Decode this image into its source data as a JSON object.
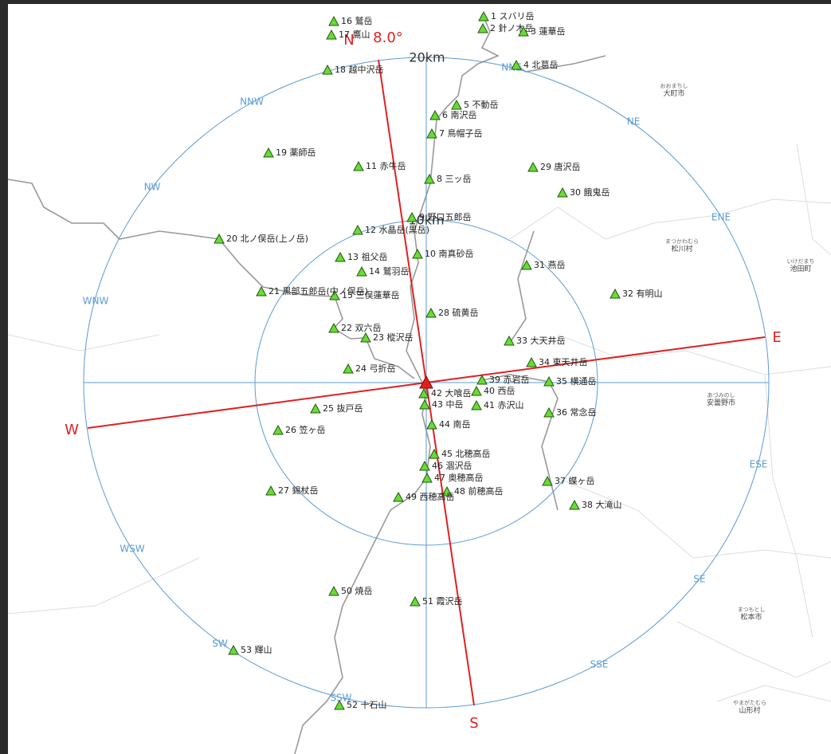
{
  "compass": {
    "north": "N",
    "angle": "8.0°",
    "east": "E",
    "south": "S",
    "west": "W",
    "directions": [
      "NNE",
      "NE",
      "ENE",
      "ESE",
      "SE",
      "SSE",
      "SSW",
      "SW",
      "WSW",
      "WNW",
      "NW",
      "NNW"
    ]
  },
  "rings": [
    "20km",
    "10km"
  ],
  "peaks": [
    "1 スバリ岳",
    "2 針ノ木岳",
    "3 蓮華岳",
    "4 北葛岳",
    "5 不動岳",
    "6 南沢岳",
    "7 鳥帽子岳",
    "8 三ッ岳",
    "9 野口五郎岳",
    "10 南真砂岳",
    "11 赤牛岳",
    "12 水晶岳(黒岳)",
    "13 祖父岳",
    "14 鷲羽岳",
    "15 三俣蓮華岳",
    "16 鷲岳",
    "17 鷹山",
    "18 越中沢岳",
    "19 薬師岳",
    "20 北ノ俣岳(上ノ岳)",
    "21 黒部五郎岳(中ノ俣岳)",
    "22 双六岳",
    "23 樅沢岳",
    "24 弓折岳",
    "25 抜戸岳",
    "26 笠ヶ岳",
    "27 錫杖岳",
    "28 硫黄岳",
    "29 唐沢岳",
    "30 餓鬼岳",
    "31 燕岳",
    "32 有明山",
    "33 大天井岳",
    "34 東天井岳",
    "35 横通岳",
    "36 常念岳",
    "37 蝶ヶ岳",
    "38 大滝山",
    "39 赤岩岳",
    "40 西岳",
    "41 赤沢山",
    "42 大喰岳",
    "43 中岳",
    "44 南岳",
    "45 北穂高岳",
    "46 涸沢岳",
    "47 奥穂高岳",
    "48 前穂高岳",
    "49 西穂高岳",
    "50 焼岳",
    "51 霞沢岳",
    "52 十石山",
    "53 輝山"
  ],
  "places": [
    {
      "kana": "おおまちし",
      "name": "大町市"
    },
    {
      "kana": "まつかわむら",
      "name": "松川村"
    },
    {
      "kana": "いけだまち",
      "name": "池田町"
    },
    {
      "kana": "あづみのし",
      "name": "安曇野市"
    },
    {
      "kana": "まつもとし",
      "name": "松本市"
    },
    {
      "kana": "やまがたむら",
      "name": "山形村"
    }
  ]
}
